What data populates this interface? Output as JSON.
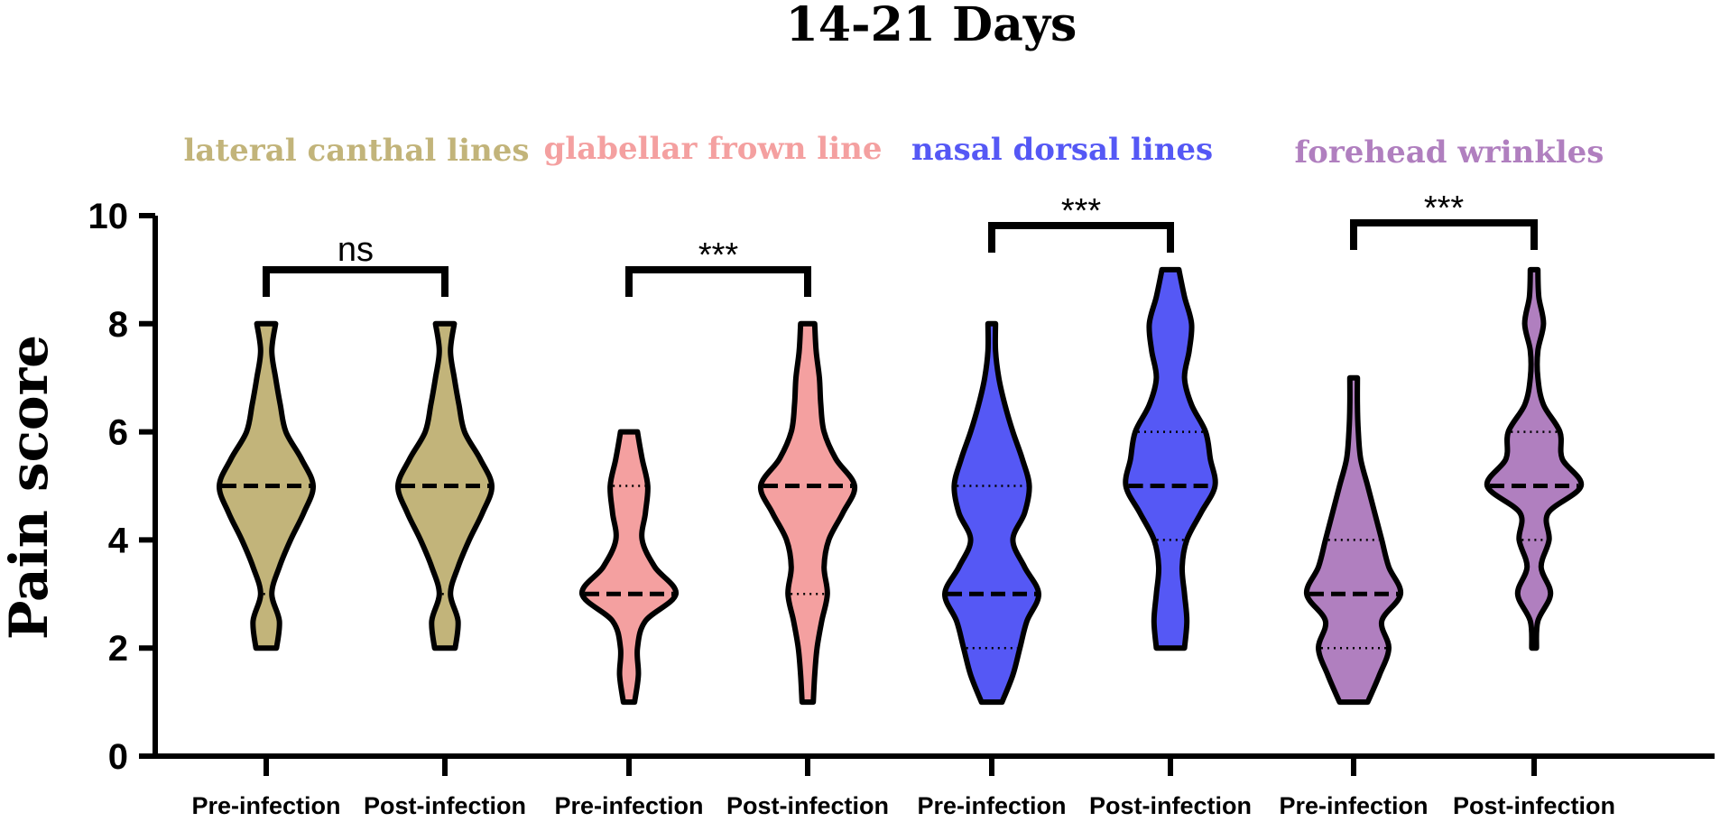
{
  "chart_data": {
    "type": "violin",
    "title": "14-21 Days",
    "ylabel": "Pain score",
    "ylim": [
      0,
      10
    ],
    "yticks": [
      0,
      2,
      4,
      6,
      8,
      10
    ],
    "groups": [
      {
        "name": "lateral canthal lines",
        "color": "#c2b47a",
        "significance": "ns",
        "violins": [
          {
            "label": "Pre-infection",
            "min": 2,
            "max": 8,
            "median": 5,
            "q1": 3,
            "q3": 5,
            "density": [
              [
                2,
                0.22
              ],
              [
                2.5,
                0.28
              ],
              [
                3,
                0.12
              ],
              [
                3.5,
                0.28
              ],
              [
                4,
                0.52
              ],
              [
                4.5,
                0.8
              ],
              [
                5,
                1.0
              ],
              [
                5.5,
                0.75
              ],
              [
                6,
                0.42
              ],
              [
                6.5,
                0.3
              ],
              [
                7,
                0.2
              ],
              [
                7.5,
                0.12
              ],
              [
                8,
                0.2
              ]
            ]
          },
          {
            "label": "Post-infection",
            "min": 2,
            "max": 8,
            "median": 5,
            "q1": 3,
            "q3": 5,
            "density": [
              [
                2,
                0.22
              ],
              [
                2.5,
                0.28
              ],
              [
                3,
                0.12
              ],
              [
                3.5,
                0.28
              ],
              [
                4,
                0.52
              ],
              [
                4.5,
                0.8
              ],
              [
                5,
                1.0
              ],
              [
                5.5,
                0.75
              ],
              [
                6,
                0.42
              ],
              [
                6.5,
                0.3
              ],
              [
                7,
                0.2
              ],
              [
                7.5,
                0.12
              ],
              [
                8,
                0.2
              ]
            ]
          }
        ]
      },
      {
        "name": "glabellar frown line",
        "color": "#f4a0a0",
        "significance": "***",
        "violins": [
          {
            "label": "Pre-infection",
            "min": 1,
            "max": 6,
            "median": 3,
            "q1": 3,
            "q3": 5,
            "density": [
              [
                1,
                0.12
              ],
              [
                1.5,
                0.2
              ],
              [
                2,
                0.18
              ],
              [
                2.5,
                0.35
              ],
              [
                3,
                1.0
              ],
              [
                3.5,
                0.55
              ],
              [
                4,
                0.28
              ],
              [
                4.5,
                0.35
              ],
              [
                5,
                0.4
              ],
              [
                5.5,
                0.28
              ],
              [
                6,
                0.18
              ]
            ]
          },
          {
            "label": "Post-infection",
            "min": 1,
            "max": 8,
            "median": 5,
            "q1": 3,
            "q3": 5,
            "density": [
              [
                1,
                0.12
              ],
              [
                1.5,
                0.15
              ],
              [
                2,
                0.2
              ],
              [
                2.5,
                0.3
              ],
              [
                3,
                0.42
              ],
              [
                3.5,
                0.35
              ],
              [
                4,
                0.45
              ],
              [
                4.5,
                0.75
              ],
              [
                5,
                1.0
              ],
              [
                5.5,
                0.6
              ],
              [
                6,
                0.35
              ],
              [
                6.5,
                0.28
              ],
              [
                7,
                0.25
              ],
              [
                7.5,
                0.18
              ],
              [
                8,
                0.15
              ]
            ]
          }
        ]
      },
      {
        "name": "nasal dorsal lines",
        "color": "#5558f5",
        "significance": "***",
        "violins": [
          {
            "label": "Pre-infection",
            "min": 1,
            "max": 8,
            "median": 3,
            "q1": 2,
            "q3": 5,
            "density": [
              [
                1,
                0.22
              ],
              [
                1.5,
                0.45
              ],
              [
                2,
                0.6
              ],
              [
                2.5,
                0.75
              ],
              [
                3,
                1.0
              ],
              [
                3.5,
                0.7
              ],
              [
                4,
                0.45
              ],
              [
                4.5,
                0.7
              ],
              [
                5,
                0.8
              ],
              [
                5.5,
                0.65
              ],
              [
                6,
                0.45
              ],
              [
                6.5,
                0.28
              ],
              [
                7,
                0.15
              ],
              [
                7.5,
                0.08
              ],
              [
                8,
                0.08
              ]
            ]
          },
          {
            "label": "Post-infection",
            "min": 2,
            "max": 9,
            "median": 5,
            "q1": 4,
            "q3": 6,
            "density": [
              [
                2,
                0.3
              ],
              [
                2.5,
                0.35
              ],
              [
                3,
                0.3
              ],
              [
                3.5,
                0.25
              ],
              [
                4,
                0.35
              ],
              [
                4.5,
                0.65
              ],
              [
                5,
                0.95
              ],
              [
                5.5,
                0.85
              ],
              [
                6,
                0.75
              ],
              [
                6.5,
                0.45
              ],
              [
                7,
                0.3
              ],
              [
                7.5,
                0.4
              ],
              [
                8,
                0.45
              ],
              [
                8.5,
                0.3
              ],
              [
                9,
                0.18
              ]
            ]
          }
        ]
      },
      {
        "name": "forehead wrinkles",
        "color": "#b07fbf",
        "significance": "***",
        "violins": [
          {
            "label": "Pre-infection",
            "min": 1,
            "max": 7,
            "median": 3,
            "q1": 2,
            "q3": 4,
            "density": [
              [
                1,
                0.3
              ],
              [
                1.5,
                0.55
              ],
              [
                2,
                0.75
              ],
              [
                2.5,
                0.6
              ],
              [
                3,
                1.0
              ],
              [
                3.5,
                0.75
              ],
              [
                4,
                0.6
              ],
              [
                4.5,
                0.45
              ],
              [
                5,
                0.3
              ],
              [
                5.5,
                0.15
              ],
              [
                6,
                0.1
              ],
              [
                6.5,
                0.08
              ],
              [
                7,
                0.08
              ]
            ]
          },
          {
            "label": "Post-infection",
            "min": 2,
            "max": 9,
            "median": 5,
            "q1": 4,
            "q3": 6,
            "density": [
              [
                2,
                0.05
              ],
              [
                2.5,
                0.08
              ],
              [
                3,
                0.35
              ],
              [
                3.5,
                0.15
              ],
              [
                4,
                0.32
              ],
              [
                4.5,
                0.3
              ],
              [
                5,
                1.0
              ],
              [
                5.5,
                0.6
              ],
              [
                6,
                0.55
              ],
              [
                6.5,
                0.2
              ],
              [
                7,
                0.08
              ],
              [
                7.5,
                0.08
              ],
              [
                8,
                0.2
              ],
              [
                8.5,
                0.1
              ],
              [
                9,
                0.08
              ]
            ]
          }
        ]
      }
    ],
    "grid": false,
    "legend": "none"
  }
}
